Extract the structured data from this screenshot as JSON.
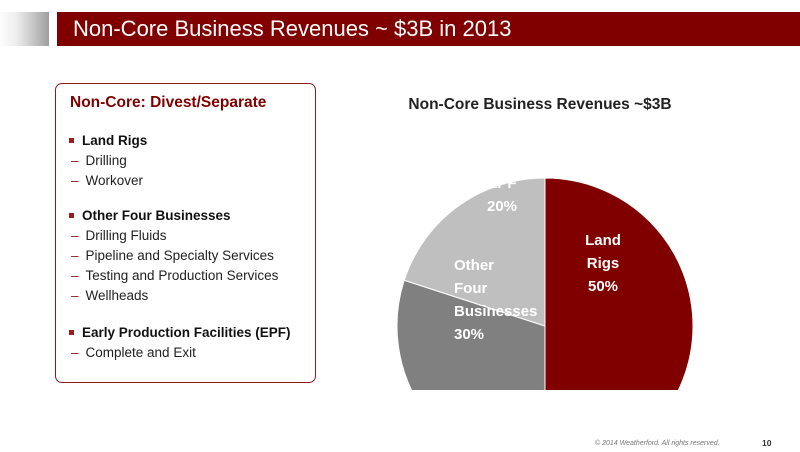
{
  "header": {
    "title": "Non-Core Business Revenues ~ $3B in 2013"
  },
  "left_panel": {
    "heading": "Non-Core: Divest/Separate",
    "groups": [
      {
        "label": "Land Rigs",
        "items": [
          "Drilling",
          "Workover"
        ]
      },
      {
        "label": "Other Four Businesses",
        "items": [
          "Drilling Fluids",
          "Pipeline and Specialty Services",
          "Testing and Production Services",
          "Wellheads"
        ]
      },
      {
        "label": "Early Production Facilities (EPF)",
        "items": [
          "Complete and Exit"
        ]
      }
    ]
  },
  "colors": {
    "brand": "#800000",
    "land_rigs": "#800000",
    "other_four": "#808080",
    "epf": "#bfbfbf"
  },
  "chart_data": {
    "type": "pie",
    "title": "Non-Core Business Revenues ~$3B",
    "slices": [
      {
        "label_lines": [
          "Land",
          "Rigs"
        ],
        "value": 50,
        "value_label": "50%",
        "color": "#800000"
      },
      {
        "label_lines": [
          "Other",
          "Four",
          "Businesses"
        ],
        "value": 30,
        "value_label": "30%",
        "color": "#808080"
      },
      {
        "label_lines": [
          "EPF"
        ],
        "value": 20,
        "value_label": "20%",
        "color": "#bfbfbf"
      }
    ],
    "legend": "none"
  },
  "footer": {
    "copyright": "© 2014 Weatherford. All rights reserved.",
    "page_number": "10"
  }
}
